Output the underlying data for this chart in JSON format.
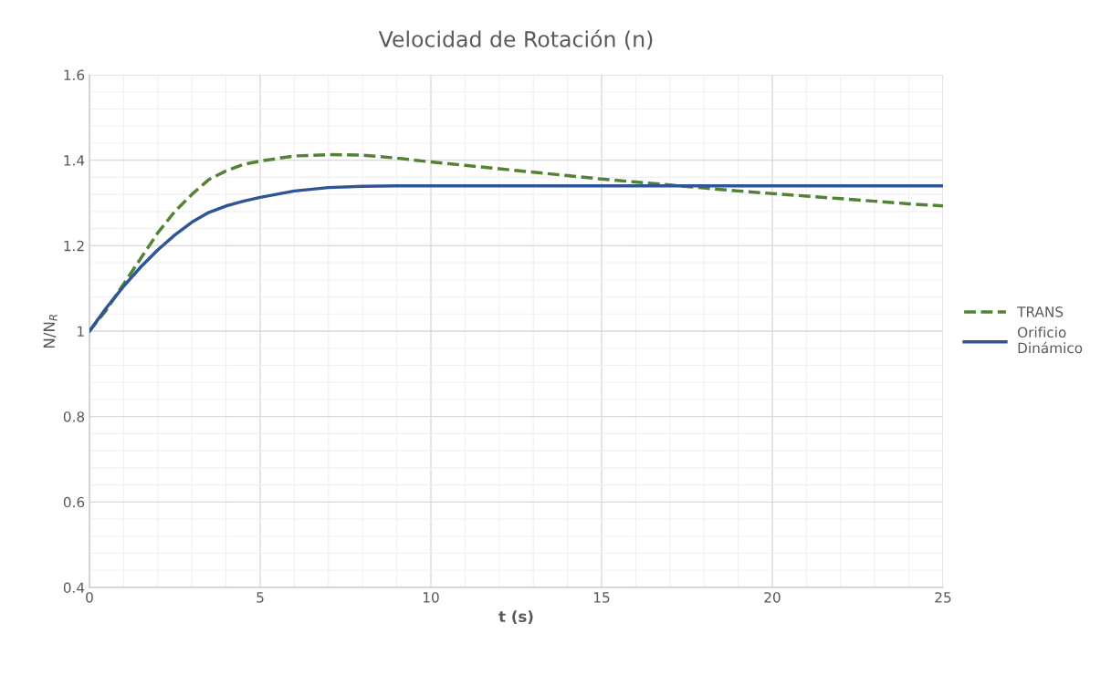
{
  "chart_data": {
    "type": "line",
    "title": "Velocidad de Rotación (n)",
    "xlabel": "t (s)",
    "ylabel": "N/N$_{R}$",
    "xlim": [
      0,
      25
    ],
    "xticks": [
      0,
      5,
      10,
      15,
      20,
      25
    ],
    "ylim": [
      0.4,
      1.6
    ],
    "yticks": [
      0.4,
      0.6,
      0.8,
      1,
      1.2,
      1.4,
      1.6
    ],
    "grid": true,
    "legend": "right",
    "marker": "none",
    "series": [
      {
        "name": "TRANS",
        "color": "#548235",
        "line_style": "dashed",
        "x": [
          0,
          0.5,
          1,
          1.5,
          2,
          2.5,
          3,
          3.5,
          4,
          4.5,
          5,
          6,
          7,
          8,
          9,
          10,
          11,
          12,
          13,
          14,
          15,
          16,
          17,
          18,
          19,
          20,
          21,
          22,
          23,
          24,
          25
        ],
        "values": [
          1.0,
          1.05,
          1.11,
          1.17,
          1.23,
          1.28,
          1.32,
          1.355,
          1.375,
          1.39,
          1.398,
          1.41,
          1.413,
          1.412,
          1.405,
          1.396,
          1.388,
          1.38,
          1.372,
          1.364,
          1.356,
          1.349,
          1.342,
          1.335,
          1.328,
          1.322,
          1.316,
          1.31,
          1.304,
          1.298,
          1.293
        ]
      },
      {
        "name": "Orificio\nDinámico",
        "color": "#2f5597",
        "line_style": "solid",
        "x": [
          0,
          0.5,
          1,
          1.5,
          2,
          2.5,
          3,
          3.5,
          4,
          4.5,
          5,
          6,
          7,
          8,
          9,
          10,
          15,
          20,
          25
        ],
        "values": [
          1.0,
          1.055,
          1.105,
          1.15,
          1.19,
          1.225,
          1.255,
          1.278,
          1.293,
          1.304,
          1.313,
          1.328,
          1.336,
          1.339,
          1.34,
          1.34,
          1.34,
          1.34,
          1.34
        ]
      }
    ]
  }
}
